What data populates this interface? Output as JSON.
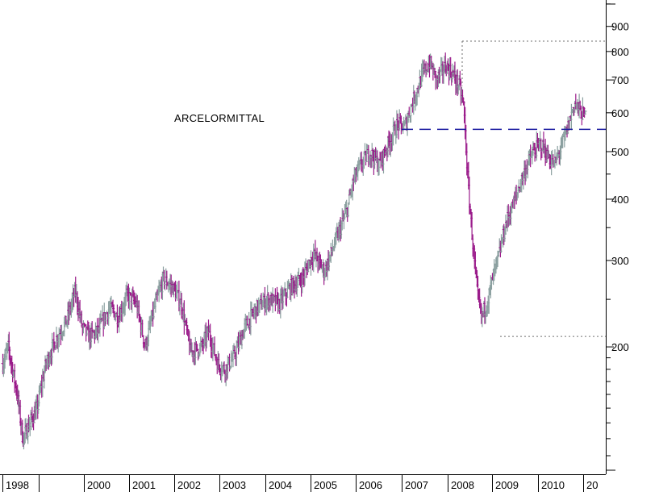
{
  "chart_data": {
    "type": "ohlc",
    "title": "ARCELORMITTAL",
    "xlabel": "",
    "ylabel": "",
    "y_scale": "log",
    "ylim": [
      110,
      1050
    ],
    "y_ticks": [
      200,
      300,
      400,
      500,
      600,
      700,
      800,
      900
    ],
    "x_tick_labels": [
      "1998",
      "2000",
      "2001",
      "2002",
      "2003",
      "2004",
      "2005",
      "2006",
      "2007",
      "2008",
      "2009",
      "2010",
      "20"
    ],
    "colors": {
      "up": "#8a9f9f",
      "down": "#9a1a8a",
      "resistance": "#1a1aa0",
      "range_line": "#707070",
      "axis": "#000000"
    },
    "annotations": {
      "resistance_level": 555,
      "range_high": 840,
      "range_low": 210
    },
    "anchors": [
      [
        1998.0,
        185
      ],
      [
        1998.15,
        200
      ],
      [
        1998.4,
        160
      ],
      [
        1998.55,
        130
      ],
      [
        1998.75,
        140
      ],
      [
        1998.95,
        150
      ],
      [
        1999.15,
        185
      ],
      [
        1999.4,
        210
      ],
      [
        1999.6,
        225
      ],
      [
        1999.8,
        260
      ],
      [
        1999.95,
        220
      ],
      [
        2000.1,
        210
      ],
      [
        2000.3,
        215
      ],
      [
        2000.55,
        240
      ],
      [
        2000.75,
        230
      ],
      [
        2000.95,
        255
      ],
      [
        2001.15,
        245
      ],
      [
        2001.35,
        200
      ],
      [
        2001.55,
        240
      ],
      [
        2001.75,
        275
      ],
      [
        2001.95,
        265
      ],
      [
        2002.15,
        245
      ],
      [
        2002.35,
        195
      ],
      [
        2002.6,
        200
      ],
      [
        2002.75,
        215
      ],
      [
        2002.95,
        185
      ],
      [
        2003.1,
        180
      ],
      [
        2003.3,
        190
      ],
      [
        2003.55,
        220
      ],
      [
        2003.8,
        240
      ],
      [
        2004.05,
        250
      ],
      [
        2004.3,
        245
      ],
      [
        2004.55,
        265
      ],
      [
        2004.8,
        275
      ],
      [
        2005.05,
        310
      ],
      [
        2005.3,
        285
      ],
      [
        2005.55,
        330
      ],
      [
        2005.8,
        380
      ],
      [
        2005.95,
        440
      ],
      [
        2006.1,
        470
      ],
      [
        2006.3,
        500
      ],
      [
        2006.5,
        470
      ],
      [
        2006.7,
        520
      ],
      [
        2006.9,
        570
      ],
      [
        2007.05,
        560
      ],
      [
        2007.25,
        640
      ],
      [
        2007.45,
        720
      ],
      [
        2007.6,
        760
      ],
      [
        2007.75,
        700
      ],
      [
        2007.95,
        750
      ],
      [
        2008.1,
        720
      ],
      [
        2008.25,
        680
      ],
      [
        2008.35,
        620
      ],
      [
        2008.45,
        430
      ],
      [
        2008.55,
        330
      ],
      [
        2008.65,
        260
      ],
      [
        2008.75,
        230
      ],
      [
        2008.9,
        250
      ],
      [
        2009.0,
        275
      ],
      [
        2009.15,
        310
      ],
      [
        2009.3,
        360
      ],
      [
        2009.45,
        390
      ],
      [
        2009.6,
        430
      ],
      [
        2009.75,
        470
      ],
      [
        2009.9,
        500
      ],
      [
        2010.05,
        520
      ],
      [
        2010.2,
        490
      ],
      [
        2010.35,
        470
      ],
      [
        2010.5,
        510
      ],
      [
        2010.65,
        560
      ],
      [
        2010.8,
        630
      ],
      [
        2010.95,
        600
      ],
      [
        2011.05,
        590
      ]
    ]
  }
}
